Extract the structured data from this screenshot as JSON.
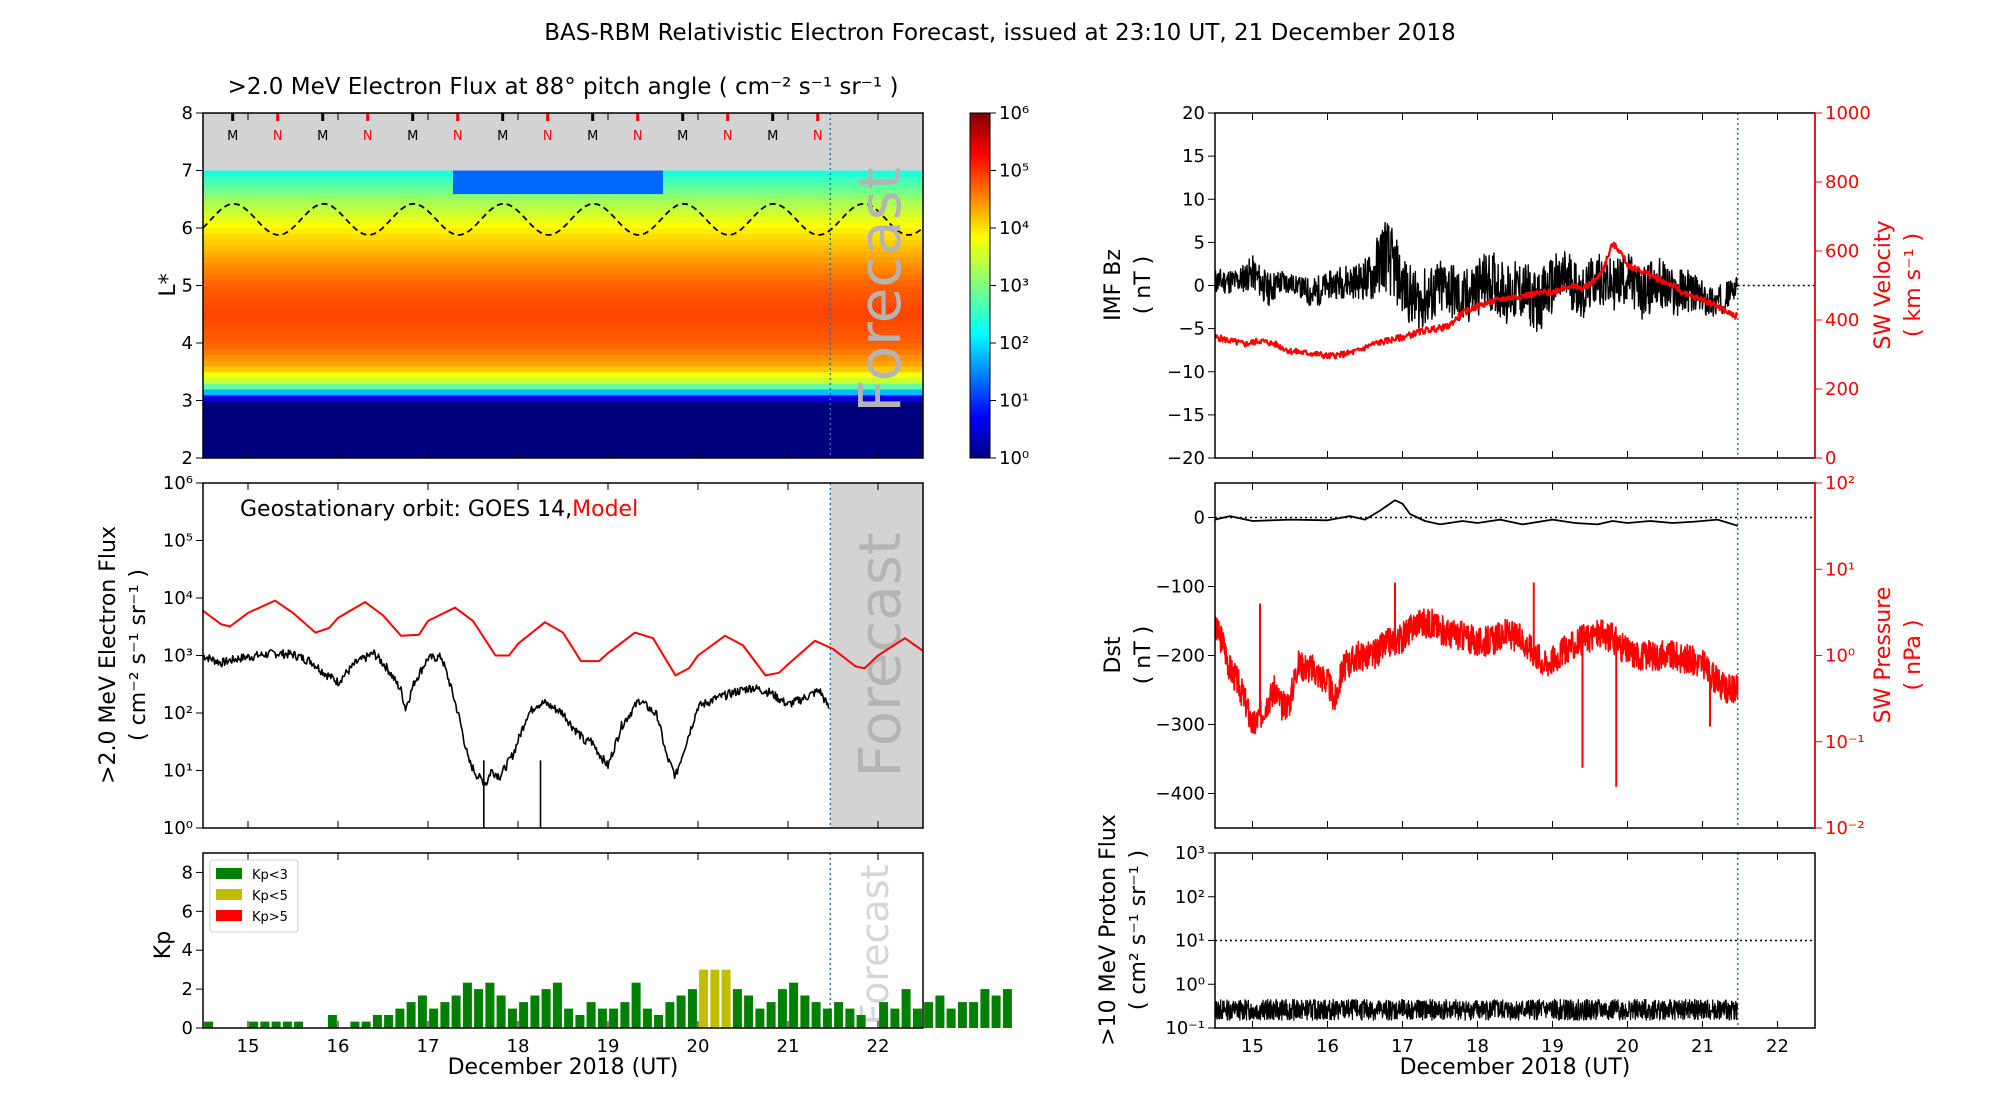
{
  "title": "BAS-RBM Relativistic Electron Forecast, issued at 23:10 UT, 21 December 2018",
  "colors": {
    "model": "#ff0000",
    "obs": "#000000",
    "kp_low": "#008000",
    "kp_mid": "#bfbf00",
    "kp_high": "#ff0000",
    "forecast_shade": "#d3d3d3",
    "forecast_line": "#1f77b4"
  },
  "x_axis": {
    "label": "December 2018 (UT)",
    "range": [
      14.5,
      22.5
    ],
    "ticks": [
      "15",
      "16",
      "17",
      "18",
      "19",
      "20",
      "21",
      "22"
    ],
    "forecast_start": 21.47
  },
  "forecast_text": "Forecast",
  "chart_data": [
    {
      "type": "heatmap",
      "title": ">2.0 MeV Electron Flux at 88° pitch angle ( cm⁻² s⁻¹ sr⁻¹ )",
      "ylabel": "L*",
      "ylim": [
        2,
        8
      ],
      "yticks": [
        "2",
        "3",
        "4",
        "5",
        "6",
        "7",
        "8"
      ],
      "colorbar": {
        "range": [
          1,
          1000000
        ],
        "scale": "log",
        "ticks": [
          "10⁰",
          "10¹",
          "10²",
          "10³",
          "10⁴",
          "10⁵",
          "10⁶"
        ]
      },
      "mlt_markers": {
        "labels": [
          "M",
          "N",
          "M",
          "N",
          "M",
          "N",
          "M",
          "N",
          "M",
          "N",
          "M",
          "N",
          "M",
          "N"
        ],
        "first": 14.83,
        "spacing": 0.5
      },
      "magnetopause": {
        "mean": 6.15,
        "amplitude": 0.27,
        "period_days": 1,
        "phase_day": 14.84
      },
      "profile": [
        {
          "L": 2.0,
          "v": 0
        },
        {
          "L": 3.0,
          "v": 0
        },
        {
          "L": 3.15,
          "v": 1.8
        },
        {
          "L": 3.3,
          "v": 3.3
        },
        {
          "L": 3.6,
          "v": 4.3
        },
        {
          "L": 4.0,
          "v": 4.75
        },
        {
          "L": 4.5,
          "v": 4.9
        },
        {
          "L": 5.0,
          "v": 4.75
        },
        {
          "L": 5.5,
          "v": 4.35
        },
        {
          "L": 6.0,
          "v": 3.9
        },
        {
          "L": 6.5,
          "v": 3.2
        },
        {
          "L": 7.0,
          "v": 2.3
        }
      ],
      "dropout": {
        "x_range": [
          17.3,
          19.6
        ],
        "L_range": [
          6.6,
          7.0
        ]
      }
    },
    {
      "type": "line",
      "label_prefix": "Geostationary orbit:   GOES 14,",
      "label_model": "Model",
      "ylabel": ">2.0 MeV Electron Flux",
      "ylabel2": "( cm⁻² s⁻¹ sr⁻¹ )",
      "yscale": "log",
      "ylim": [
        1,
        1000000
      ],
      "yticks": [
        "10⁰",
        "10¹",
        "10²",
        "10³",
        "10⁴",
        "10⁵",
        "10⁶"
      ],
      "series": [
        {
          "name": "Model",
          "x": [
            14.5,
            14.7,
            14.8,
            15.0,
            15.3,
            15.5,
            15.75,
            15.9,
            16.0,
            16.3,
            16.5,
            16.7,
            16.9,
            17.0,
            17.3,
            17.5,
            17.75,
            17.9,
            18.0,
            18.3,
            18.5,
            18.7,
            18.9,
            19.0,
            19.3,
            19.5,
            19.75,
            19.9,
            20.0,
            20.3,
            20.5,
            20.75,
            20.9,
            21.0,
            21.3,
            21.5,
            21.75,
            21.85,
            22.0,
            22.3,
            22.5
          ],
          "y": [
            6000,
            3500,
            3200,
            5500,
            9000,
            5500,
            2500,
            3000,
            4500,
            8500,
            5000,
            2200,
            2300,
            4000,
            6800,
            4000,
            1000,
            1000,
            1600,
            3800,
            2500,
            800,
            800,
            1100,
            2500,
            2000,
            450,
            600,
            1000,
            2200,
            1500,
            450,
            500,
            700,
            1800,
            1300,
            650,
            600,
            1000,
            2000,
            1200
          ]
        },
        {
          "name": "GOES 14",
          "x": [
            14.5,
            14.7,
            14.9,
            15.1,
            15.3,
            15.5,
            15.7,
            15.85,
            16.0,
            16.2,
            16.4,
            16.55,
            16.7,
            16.75,
            16.85,
            17.0,
            17.15,
            17.25,
            17.35,
            17.45,
            17.55,
            17.65,
            17.7,
            17.8,
            17.95,
            18.1,
            18.2,
            18.3,
            18.5,
            18.6,
            18.7,
            18.75,
            18.8,
            18.9,
            19.0,
            19.15,
            19.35,
            19.55,
            19.65,
            19.75,
            19.85,
            20.0,
            20.2,
            20.4,
            20.6,
            20.8,
            21.0,
            21.2,
            21.35,
            21.47
          ],
          "y": [
            1000,
            750,
            900,
            1000,
            1100,
            1050,
            800,
            500,
            350,
            750,
            1100,
            600,
            250,
            120,
            350,
            900,
            950,
            300,
            80,
            15,
            8,
            6,
            10,
            8,
            20,
            90,
            140,
            150,
            100,
            60,
            40,
            30,
            35,
            20,
            12,
            60,
            170,
            90,
            18,
            8,
            25,
            130,
            180,
            230,
            280,
            230,
            140,
            190,
            250,
            110
          ]
        }
      ]
    },
    {
      "type": "bar",
      "ylabel": "Kp",
      "ylim": [
        0,
        9
      ],
      "yticks": [
        "0",
        "2",
        "4",
        "6",
        "8"
      ],
      "legend": [
        {
          "label": "Kp<3",
          "color": "#008000"
        },
        {
          "label": "Kp<5",
          "color": "#bfbf00"
        },
        {
          "label": "Kp>5",
          "color": "#ff0000"
        }
      ],
      "bar_width_days": 0.1,
      "first_bar_center": 14.5625,
      "values": [
        0.33,
        0,
        0,
        0,
        0.33,
        0.33,
        0.33,
        0.33,
        0.33,
        0,
        0,
        0.67,
        0,
        0.33,
        0.33,
        0.67,
        0.67,
        1,
        1.33,
        1.67,
        1,
        1.33,
        1.67,
        2.33,
        2,
        2.33,
        1.67,
        1,
        1.33,
        1.67,
        2,
        2.33,
        1,
        0.67,
        1.33,
        1,
        1,
        1.33,
        2.33,
        1,
        0.67,
        1.33,
        1.67,
        2,
        3,
        3,
        3,
        2,
        1.67,
        1,
        1.33,
        2,
        2.33,
        1.67,
        1.33,
        1,
        1.33,
        1,
        0.67,
        0,
        1.33,
        1,
        2,
        1,
        1.33,
        1.67,
        1,
        1.33,
        1.33,
        2,
        1.67,
        2
      ]
    },
    {
      "type": "line",
      "ylabel": "IMF Bz",
      "ylabel_units": "( nT )",
      "ylim": [
        -20,
        20
      ],
      "yticks": [
        "20",
        "15",
        "10",
        "5",
        "0",
        "−5",
        "−10",
        "−15",
        "−20"
      ],
      "y2label": "SW Velocity",
      "y2label_units": "( km s⁻¹ )",
      "y2lim": [
        0,
        1000
      ],
      "y2ticks": [
        "1000",
        "800",
        "600",
        "400",
        "200",
        "0"
      ],
      "series": [
        {
          "name": "IMF Bz",
          "x": [
            14.5,
            14.8,
            15.0,
            15.2,
            15.4,
            15.6,
            15.8,
            16.0,
            16.2,
            16.4,
            16.6,
            16.75,
            16.9,
            17.0,
            17.2,
            17.4,
            17.6,
            17.8,
            18.0,
            18.2,
            18.4,
            18.6,
            18.8,
            19.0,
            19.2,
            19.4,
            19.6,
            19.8,
            20.0,
            20.2,
            20.4,
            20.6,
            20.8,
            21.0,
            21.2,
            21.47
          ],
          "y": [
            0.5,
            0.5,
            1.5,
            -0.5,
            0.5,
            0,
            -1,
            0,
            0.5,
            0.5,
            1,
            4,
            2,
            0,
            -2,
            -1,
            0,
            -2,
            0,
            0.5,
            -1,
            -0.5,
            -2,
            0,
            1,
            -1,
            1,
            0,
            1,
            -1,
            0.5,
            -1,
            -0.5,
            -1.5,
            -2,
            0
          ],
          "band": [
            1.5,
            1.5,
            2,
            2,
            1.5,
            1,
            2,
            1.5,
            2,
            2,
            3,
            4.5,
            4,
            3.5,
            3.5,
            3.5,
            3.5,
            3.5,
            3.5,
            3.5,
            3.5,
            3.5,
            3.5,
            3.5,
            3.5,
            3,
            3,
            3,
            3,
            3,
            3,
            3,
            2.5,
            2,
            2,
            1
          ]
        },
        {
          "name": "SW Velocity",
          "x": [
            14.5,
            14.7,
            14.9,
            15.1,
            15.3,
            15.5,
            15.7,
            15.9,
            16.0,
            16.2,
            16.4,
            16.6,
            16.8,
            17.0,
            17.3,
            17.6,
            17.8,
            18.0,
            18.3,
            18.6,
            18.9,
            19.0,
            19.2,
            19.4,
            19.6,
            19.7,
            19.8,
            19.9,
            20.0,
            20.2,
            20.4,
            20.6,
            20.8,
            21.0,
            21.2,
            21.35,
            21.47
          ],
          "y": [
            350,
            340,
            330,
            340,
            330,
            310,
            305,
            300,
            295,
            300,
            310,
            330,
            340,
            350,
            370,
            380,
            420,
            440,
            460,
            470,
            480,
            480,
            500,
            490,
            520,
            560,
            620,
            600,
            560,
            540,
            520,
            500,
            470,
            460,
            440,
            420,
            410
          ]
        }
      ],
      "zero_line": 0
    },
    {
      "type": "line",
      "ylabel": "Dst",
      "ylabel_units": "( nT )",
      "ylim": [
        -450,
        50
      ],
      "yticks": [
        "0",
        "−100",
        "−200",
        "−300",
        "−400"
      ],
      "y2label": "SW Pressure",
      "y2label_units": "( nPa )",
      "y2scale": "log",
      "y2lim": [
        0.01,
        100
      ],
      "y2ticks": [
        "10⁻²",
        "10⁻¹",
        "10⁰",
        "10¹",
        "10²"
      ],
      "series": [
        {
          "name": "Dst",
          "x": [
            14.5,
            14.7,
            15.0,
            15.5,
            16.0,
            16.3,
            16.5,
            16.7,
            16.9,
            17.0,
            17.1,
            17.3,
            17.5,
            17.8,
            18.0,
            18.3,
            18.6,
            19.0,
            19.3,
            19.6,
            19.8,
            20.0,
            20.3,
            20.6,
            20.9,
            21.2,
            21.47
          ],
          "y": [
            -3,
            2,
            -5,
            -3,
            -4,
            2,
            -3,
            10,
            25,
            20,
            5,
            -5,
            -10,
            -5,
            -8,
            -3,
            -10,
            -3,
            -8,
            -10,
            -5,
            -8,
            -5,
            -8,
            -6,
            -3,
            -12
          ]
        },
        {
          "name": "SW Pressure",
          "x": [
            14.5,
            14.6,
            14.7,
            14.8,
            14.9,
            15.0,
            15.1,
            15.2,
            15.3,
            15.4,
            15.5,
            15.6,
            15.8,
            16.0,
            16.1,
            16.2,
            16.4,
            16.6,
            16.8,
            17.0,
            17.2,
            17.4,
            17.6,
            17.8,
            18.0,
            18.2,
            18.4,
            18.6,
            18.8,
            18.9,
            19.0,
            19.2,
            19.4,
            19.6,
            19.8,
            20.0,
            20.2,
            20.4,
            20.6,
            20.8,
            21.0,
            21.1,
            21.2,
            21.3,
            21.47
          ],
          "y": [
            2,
            1.5,
            0.7,
            0.5,
            0.3,
            0.15,
            0.2,
            0.3,
            0.4,
            0.25,
            0.3,
            0.8,
            0.7,
            0.5,
            0.3,
            0.7,
            1,
            1,
            1.4,
            1.6,
            2.5,
            2.3,
            1.8,
            1.7,
            1.4,
            1.5,
            1.8,
            1.5,
            1,
            0.8,
            0.9,
            1.2,
            1.5,
            1.8,
            1.6,
            1.1,
            1,
            1,
            1,
            0.9,
            0.8,
            0.6,
            0.5,
            0.4,
            0.4
          ]
        }
      ],
      "zero_line": 0,
      "spikes": [
        {
          "x": 15.1,
          "y": 4
        },
        {
          "x": 16.9,
          "y": 7
        },
        {
          "x": 18.75,
          "y": 7
        },
        {
          "x": 19.85,
          "y": 0.03
        },
        {
          "x": 19.4,
          "y": 0.05
        },
        {
          "x": 21.1,
          "y": 0.15
        }
      ]
    },
    {
      "type": "line",
      "ylabel": ">10 MeV Proton Flux",
      "ylabel_units": "( cm² s⁻¹ sr⁻¹ )",
      "yscale": "log",
      "ylim": [
        0.1,
        1000
      ],
      "yticks": [
        "10⁻¹",
        "10⁰",
        "10¹",
        "10²",
        "10³"
      ],
      "threshold": 10,
      "series": [
        {
          "name": "Proton Flux",
          "x_start": 14.5,
          "x_end": 21.47,
          "mean": 0.25,
          "spread": [
            0.15,
            0.45
          ]
        }
      ]
    }
  ]
}
